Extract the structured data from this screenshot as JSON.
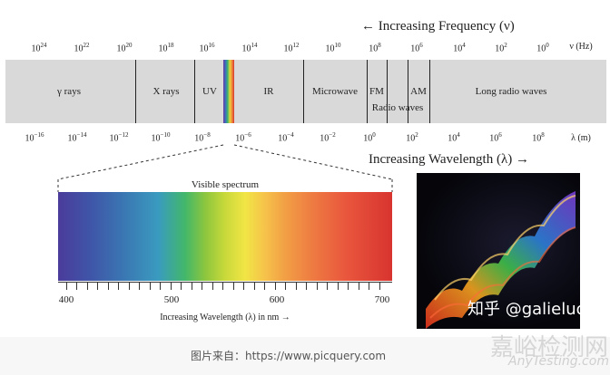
{
  "diagram": {
    "frequency_title": "← Increasing Frequency (ν)",
    "wavelength_title": "Increasing Wavelength (λ) →",
    "freq_unit": "ν (Hz)",
    "wave_unit": "λ (m)",
    "freq_ticks": [
      {
        "base": "10",
        "exp": "24"
      },
      {
        "base": "10",
        "exp": "22"
      },
      {
        "base": "10",
        "exp": "20"
      },
      {
        "base": "10",
        "exp": "18"
      },
      {
        "base": "10",
        "exp": "16"
      },
      {
        "base": "10",
        "exp": "14"
      },
      {
        "base": "10",
        "exp": "12"
      },
      {
        "base": "10",
        "exp": "10"
      },
      {
        "base": "10",
        "exp": "8"
      },
      {
        "base": "10",
        "exp": "6"
      },
      {
        "base": "10",
        "exp": "4"
      },
      {
        "base": "10",
        "exp": "2"
      },
      {
        "base": "10",
        "exp": "0"
      }
    ],
    "wave_ticks": [
      {
        "base": "10",
        "exp": "−16"
      },
      {
        "base": "10",
        "exp": "−14"
      },
      {
        "base": "10",
        "exp": "−12"
      },
      {
        "base": "10",
        "exp": "−10"
      },
      {
        "base": "10",
        "exp": "−8"
      },
      {
        "base": "10",
        "exp": "−6"
      },
      {
        "base": "10",
        "exp": "−4"
      },
      {
        "base": "10",
        "exp": "−2"
      },
      {
        "base": "10",
        "exp": "0"
      },
      {
        "base": "10",
        "exp": "2"
      },
      {
        "base": "10",
        "exp": "4"
      },
      {
        "base": "10",
        "exp": "6"
      },
      {
        "base": "10",
        "exp": "8"
      }
    ],
    "bands": {
      "gamma": "γ rays",
      "xray": "X rays",
      "uv": "UV",
      "ir": "IR",
      "microwave": "Microwave",
      "fm": "FM",
      "am": "AM",
      "radio": "Radio waves",
      "long_radio": "Long radio waves"
    },
    "visible": {
      "title": "Visible spectrum",
      "ticks": [
        "400",
        "500",
        "600",
        "700"
      ],
      "axis_label": "Increasing Wavelength (λ) in nm →"
    },
    "watermark": "知乎 @galieluo",
    "footer": "图片来自：https://www.picquery.com",
    "brand": "嘉峪检测网",
    "brand_sub": "AnyTesting.com"
  }
}
